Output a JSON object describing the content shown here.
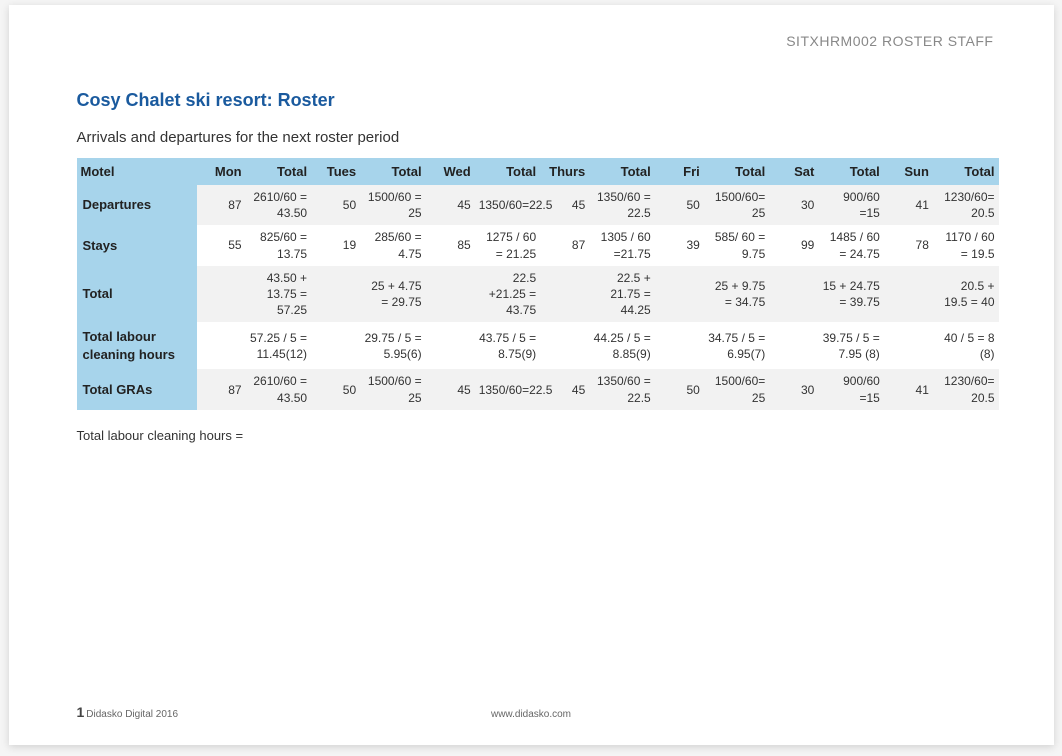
{
  "meta": {
    "unit_code": "SITXHRM002 ROSTER STAFF",
    "title": "Cosy Chalet ski resort: Roster",
    "subtitle": "Arrivals and departures for the next roster period",
    "after_table_line": "Total labour cleaning hours =",
    "page_number": "1",
    "copyright": "Didasko Digital 2016",
    "website": "www.didasko.com"
  },
  "style": {
    "title_color": "#1a5a9e",
    "header_bg": "#a7d4eb",
    "stripe_bg": "#f2f2f2",
    "text_color": "#333333",
    "muted_color": "#888888"
  },
  "table": {
    "columns": [
      "Motel",
      "Mon",
      "Total",
      "Tues",
      "Total",
      "Wed",
      "Total",
      "Thurs",
      "Total",
      "Fri",
      "Total",
      "Sat",
      "Total",
      "Sun",
      "Total"
    ],
    "rows": [
      {
        "label": "Departures",
        "cells": [
          "87",
          "2610/60 = 43.50",
          "50",
          "1500/60 = 25",
          "45",
          "1350/60=22.5",
          "45",
          "1350/60 = 22.5",
          "50",
          "1500/60= 25",
          "30",
          "900/60 =15",
          "41",
          "1230/60= 20.5"
        ]
      },
      {
        "label": "Stays",
        "cells": [
          "55",
          "825/60 = 13.75",
          "19",
          "285/60 = 4.75",
          "85",
          "1275 / 60 = 21.25",
          "87",
          "1305 / 60 =21.75",
          "39",
          "585/ 60 = 9.75",
          "99",
          "1485 / 60 = 24.75",
          "78",
          "1170 / 60 = 19.5"
        ]
      },
      {
        "label": "Total",
        "cells": [
          "",
          "43.50 + 13.75 = 57.25",
          "",
          "25 + 4.75 = 29.75",
          "",
          "22.5 +21.25 = 43.75",
          "",
          "22.5 + 21.75 = 44.25",
          "",
          "25 + 9.75 = 34.75",
          "",
          "15 + 24.75 = 39.75",
          "",
          "20.5 + 19.5 = 40"
        ]
      },
      {
        "label": "Total labour cleaning hours",
        "cells": [
          "",
          "57.25 / 5 = 11.45(12)",
          "",
          "29.75 / 5 = 5.95(6)",
          "",
          "43.75 / 5 = 8.75(9)",
          "",
          "44.25 / 5 = 8.85(9)",
          "",
          "34.75 / 5 = 6.95(7)",
          "",
          "39.75 / 5 = 7.95 (8)",
          "",
          "40 / 5 = 8 (8)"
        ]
      },
      {
        "label": "Total GRAs",
        "cells": [
          "87",
          "2610/60 = 43.50",
          "50",
          "1500/60 = 25",
          "45",
          "1350/60=22.5",
          "45",
          "1350/60 = 22.5",
          "50",
          "1500/60= 25",
          "30",
          "900/60 =15",
          "41",
          "1230/60= 20.5"
        ]
      }
    ]
  }
}
